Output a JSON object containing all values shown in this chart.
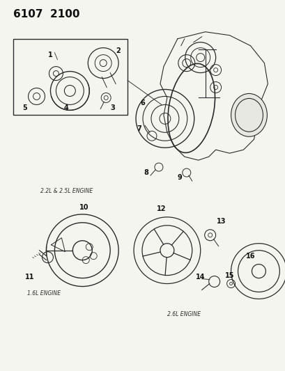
{
  "title": "6107  2100",
  "bg_color": "#f5f5f0",
  "diagram_color": "#2a2a2a",
  "line_color": "#1a1a1a",
  "label_22L_25L": "2.2L & 2.5L ENGINE",
  "label_16L": "1.6L ENGINE",
  "label_26L": "2.6L ENGINE",
  "title_fontsize": 11,
  "caption_fontsize": 5.5,
  "label_fontsize": 7
}
